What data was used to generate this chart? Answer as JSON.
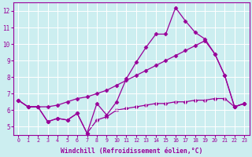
{
  "xlabel": "Windchill (Refroidissement éolien,°C)",
  "x": [
    0,
    1,
    2,
    3,
    4,
    5,
    6,
    7,
    8,
    9,
    10,
    11,
    12,
    13,
    14,
    15,
    16,
    17,
    18,
    19,
    20,
    21,
    22,
    23
  ],
  "line_jagged": [
    6.6,
    6.2,
    6.2,
    5.3,
    5.5,
    5.4,
    5.8,
    4.6,
    6.4,
    5.7,
    6.5,
    7.9,
    8.9,
    9.8,
    10.6,
    10.6,
    12.2,
    11.4,
    10.7,
    10.3,
    9.4,
    8.1,
    6.2,
    6.4
  ],
  "line_upper": [
    6.6,
    6.2,
    6.2,
    6.2,
    6.3,
    6.5,
    6.7,
    6.8,
    7.0,
    7.2,
    7.5,
    7.8,
    8.1,
    8.4,
    8.7,
    9.0,
    9.3,
    9.6,
    9.9,
    10.2,
    9.4,
    8.1,
    6.2,
    6.4
  ],
  "line_lower": [
    6.6,
    6.2,
    6.2,
    5.3,
    5.5,
    5.4,
    5.8,
    4.6,
    5.4,
    5.6,
    6.0,
    6.1,
    6.2,
    6.3,
    6.4,
    6.4,
    6.5,
    6.5,
    6.6,
    6.6,
    6.7,
    6.7,
    6.2,
    6.4
  ],
  "ylim": [
    4.5,
    12.5
  ],
  "xlim_min": -0.5,
  "xlim_max": 23.5,
  "yticks": [
    5,
    6,
    7,
    8,
    9,
    10,
    11,
    12
  ],
  "xticks": [
    0,
    1,
    2,
    3,
    4,
    5,
    6,
    7,
    8,
    9,
    10,
    11,
    12,
    13,
    14,
    15,
    16,
    17,
    18,
    19,
    20,
    21,
    22,
    23
  ],
  "bg_color": "#cceef0",
  "grid_color": "#ffffff",
  "line_color": "#990099",
  "line_width": 0.9,
  "marker_size": 2.5
}
